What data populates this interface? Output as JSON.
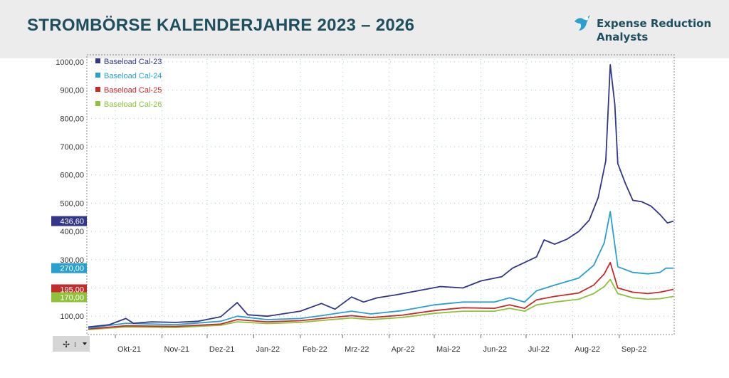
{
  "page_title": "STROMBÖRSE KALENDERJAHRE 2023 – 2026",
  "logo": {
    "line1": "Expense Reduction",
    "line2": "Analysts"
  },
  "colors": {
    "cal23": "#33378a",
    "cal24": "#2aa0cf",
    "cal25": "#c72a2a",
    "cal26": "#8fc23a",
    "title": "#1d4f5f"
  },
  "chart_data": {
    "type": "line",
    "title": "",
    "xlabel": "",
    "ylabel": "",
    "ylim": [
      35,
      1025
    ],
    "yticks": [
      100,
      200,
      300,
      400,
      500,
      600,
      700,
      800,
      900,
      1000
    ],
    "ytick_labels": [
      "100,00",
      "",
      "300,00",
      "400,00",
      "500,00",
      "600,00",
      "700,00",
      "800,00",
      "900,00",
      "1000,00"
    ],
    "x_range": [
      "2021-09-13",
      "2022-10-07"
    ],
    "xticks": [
      "2021-10-01",
      "2021-11-01",
      "2021-12-01",
      "2022-01-01",
      "2022-02-01",
      "2022-03-01",
      "2022-04-01",
      "2022-05-01",
      "2022-06-01",
      "2022-07-01",
      "2022-08-01",
      "2022-09-01"
    ],
    "xtick_labels": [
      "Okt-21",
      "Nov-21",
      "Dez-21",
      "Jan-22",
      "Feb-22",
      "Mrz-22",
      "Apr-22",
      "Mai-22",
      "Jun-22",
      "Jul-22",
      "Aug-22",
      "Sep-22"
    ],
    "grid": true,
    "legend_position": "top-left",
    "series": [
      {
        "name": "Baseload Cal-23",
        "last_value": "436,60",
        "color": "#33378a",
        "points": [
          [
            "2021-09-13",
            62
          ],
          [
            "2021-09-27",
            70
          ],
          [
            "2021-10-08",
            92
          ],
          [
            "2021-10-13",
            75
          ],
          [
            "2021-10-25",
            80
          ],
          [
            "2021-11-10",
            78
          ],
          [
            "2021-11-25",
            82
          ],
          [
            "2021-12-10",
            98
          ],
          [
            "2021-12-21",
            148
          ],
          [
            "2021-12-28",
            105
          ],
          [
            "2022-01-10",
            100
          ],
          [
            "2022-01-20",
            108
          ],
          [
            "2022-02-01",
            118
          ],
          [
            "2022-02-15",
            145
          ],
          [
            "2022-02-24",
            125
          ],
          [
            "2022-03-07",
            168
          ],
          [
            "2022-03-15",
            150
          ],
          [
            "2022-03-24",
            165
          ],
          [
            "2022-04-05",
            175
          ],
          [
            "2022-04-20",
            190
          ],
          [
            "2022-05-05",
            205
          ],
          [
            "2022-05-20",
            200
          ],
          [
            "2022-06-01",
            225
          ],
          [
            "2022-06-15",
            240
          ],
          [
            "2022-06-22",
            270
          ],
          [
            "2022-06-30",
            290
          ],
          [
            "2022-07-08",
            310
          ],
          [
            "2022-07-13",
            370
          ],
          [
            "2022-07-20",
            355
          ],
          [
            "2022-07-28",
            372
          ],
          [
            "2022-08-05",
            400
          ],
          [
            "2022-08-12",
            440
          ],
          [
            "2022-08-18",
            520
          ],
          [
            "2022-08-23",
            650
          ],
          [
            "2022-08-26",
            990
          ],
          [
            "2022-08-29",
            850
          ],
          [
            "2022-08-31",
            640
          ],
          [
            "2022-09-05",
            570
          ],
          [
            "2022-09-10",
            510
          ],
          [
            "2022-09-16",
            505
          ],
          [
            "2022-09-22",
            490
          ],
          [
            "2022-09-28",
            460
          ],
          [
            "2022-10-03",
            430
          ],
          [
            "2022-10-07",
            436.6
          ]
        ]
      },
      {
        "name": "Baseload Cal-24",
        "last_value": "270,00",
        "color": "#2aa0cf",
        "points": [
          [
            "2021-09-13",
            58
          ],
          [
            "2021-10-08",
            75
          ],
          [
            "2021-11-10",
            70
          ],
          [
            "2021-12-10",
            82
          ],
          [
            "2021-12-21",
            100
          ],
          [
            "2022-01-10",
            88
          ],
          [
            "2022-02-01",
            92
          ],
          [
            "2022-02-15",
            102
          ],
          [
            "2022-03-07",
            118
          ],
          [
            "2022-03-20",
            108
          ],
          [
            "2022-04-10",
            120
          ],
          [
            "2022-05-01",
            140
          ],
          [
            "2022-05-20",
            150
          ],
          [
            "2022-06-10",
            150
          ],
          [
            "2022-06-20",
            165
          ],
          [
            "2022-06-30",
            150
          ],
          [
            "2022-07-08",
            190
          ],
          [
            "2022-07-20",
            210
          ],
          [
            "2022-08-05",
            235
          ],
          [
            "2022-08-15",
            280
          ],
          [
            "2022-08-22",
            360
          ],
          [
            "2022-08-26",
            470
          ],
          [
            "2022-08-31",
            275
          ],
          [
            "2022-09-10",
            255
          ],
          [
            "2022-09-20",
            250
          ],
          [
            "2022-09-28",
            255
          ],
          [
            "2022-10-02",
            270
          ],
          [
            "2022-10-07",
            270
          ]
        ]
      },
      {
        "name": "Baseload Cal-25",
        "last_value": "195,00",
        "color": "#c72a2a",
        "points": [
          [
            "2021-09-13",
            55
          ],
          [
            "2021-10-08",
            66
          ],
          [
            "2021-11-10",
            64
          ],
          [
            "2021-12-10",
            72
          ],
          [
            "2021-12-21",
            88
          ],
          [
            "2022-01-10",
            80
          ],
          [
            "2022-02-01",
            84
          ],
          [
            "2022-02-15",
            92
          ],
          [
            "2022-03-07",
            102
          ],
          [
            "2022-03-20",
            95
          ],
          [
            "2022-04-10",
            104
          ],
          [
            "2022-05-01",
            120
          ],
          [
            "2022-05-20",
            130
          ],
          [
            "2022-06-10",
            128
          ],
          [
            "2022-06-20",
            140
          ],
          [
            "2022-06-30",
            128
          ],
          [
            "2022-07-08",
            158
          ],
          [
            "2022-07-20",
            170
          ],
          [
            "2022-08-05",
            182
          ],
          [
            "2022-08-15",
            210
          ],
          [
            "2022-08-22",
            250
          ],
          [
            "2022-08-26",
            290
          ],
          [
            "2022-08-31",
            200
          ],
          [
            "2022-09-10",
            185
          ],
          [
            "2022-09-20",
            180
          ],
          [
            "2022-09-28",
            185
          ],
          [
            "2022-10-07",
            195
          ]
        ]
      },
      {
        "name": "Baseload Cal-26",
        "last_value": "170,00",
        "color": "#8fc23a",
        "points": [
          [
            "2021-09-13",
            53
          ],
          [
            "2021-10-08",
            62
          ],
          [
            "2021-11-10",
            60
          ],
          [
            "2021-12-10",
            68
          ],
          [
            "2021-12-21",
            80
          ],
          [
            "2022-01-10",
            74
          ],
          [
            "2022-02-01",
            78
          ],
          [
            "2022-02-15",
            85
          ],
          [
            "2022-03-07",
            94
          ],
          [
            "2022-03-20",
            88
          ],
          [
            "2022-04-10",
            96
          ],
          [
            "2022-05-01",
            110
          ],
          [
            "2022-05-20",
            118
          ],
          [
            "2022-06-10",
            118
          ],
          [
            "2022-06-20",
            128
          ],
          [
            "2022-06-30",
            118
          ],
          [
            "2022-07-08",
            140
          ],
          [
            "2022-07-20",
            150
          ],
          [
            "2022-08-05",
            160
          ],
          [
            "2022-08-15",
            180
          ],
          [
            "2022-08-22",
            205
          ],
          [
            "2022-08-26",
            230
          ],
          [
            "2022-08-31",
            180
          ],
          [
            "2022-09-10",
            165
          ],
          [
            "2022-09-20",
            160
          ],
          [
            "2022-09-28",
            162
          ],
          [
            "2022-10-07",
            170
          ]
        ]
      }
    ]
  }
}
